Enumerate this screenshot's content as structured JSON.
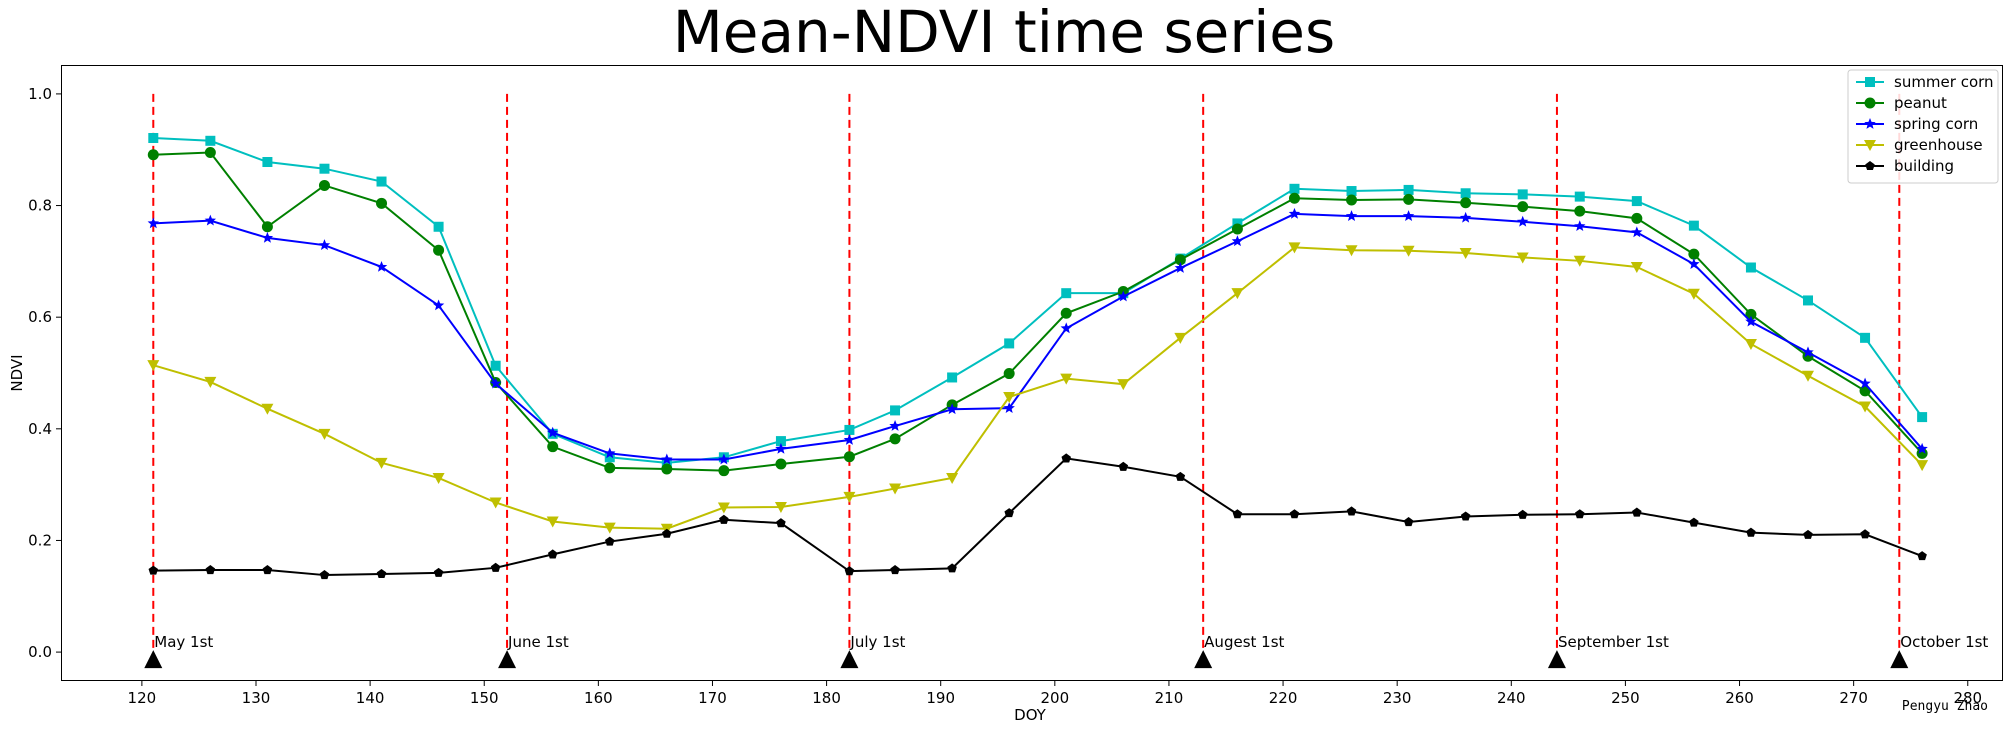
{
  "chart_data": {
    "type": "line",
    "title": "Mean-NDVI time series",
    "xlabel": "DOY",
    "ylabel": "NDVI",
    "xlim": [
      113,
      283
    ],
    "ylim": [
      -0.05,
      1.05
    ],
    "x_ticks": [
      120,
      130,
      140,
      150,
      160,
      170,
      180,
      190,
      200,
      210,
      220,
      230,
      240,
      250,
      260,
      270,
      280
    ],
    "y_ticks": [
      0.0,
      0.2,
      0.4,
      0.6,
      0.8,
      1.0
    ],
    "y_tick_labels": [
      "0.0",
      "0.2",
      "0.4",
      "0.6",
      "0.8",
      "1.0"
    ],
    "grid": false,
    "legend_position": "top-right",
    "x": [
      121,
      126,
      131,
      136,
      141,
      146,
      151,
      156,
      161,
      166,
      171,
      176,
      182,
      186,
      191,
      196,
      201,
      206,
      211,
      216,
      221,
      226,
      231,
      236,
      241,
      246,
      251,
      256,
      261,
      266,
      271,
      276
    ],
    "series": [
      {
        "name": "summer corn",
        "color": "#00bfbf",
        "marker": "square",
        "values": [
          0.921,
          0.916,
          0.878,
          0.866,
          0.843,
          0.762,
          0.513,
          0.391,
          0.349,
          0.339,
          0.349,
          0.378,
          0.398,
          0.433,
          0.492,
          0.553,
          0.643,
          0.643,
          0.705,
          0.768,
          0.83,
          0.826,
          0.828,
          0.822,
          0.82,
          0.816,
          0.808,
          0.764,
          0.689,
          0.63,
          0.563,
          0.421
        ]
      },
      {
        "name": "peanut",
        "color": "#008000",
        "marker": "circle",
        "values": [
          0.891,
          0.895,
          0.762,
          0.836,
          0.804,
          0.72,
          0.483,
          0.368,
          0.33,
          0.328,
          0.325,
          0.337,
          0.35,
          0.382,
          0.443,
          0.499,
          0.607,
          0.646,
          0.703,
          0.758,
          0.813,
          0.81,
          0.811,
          0.805,
          0.798,
          0.79,
          0.777,
          0.713,
          0.605,
          0.53,
          0.468,
          0.356
        ]
      },
      {
        "name": "spring corn",
        "color": "#0000ff",
        "marker": "star",
        "values": [
          0.768,
          0.773,
          0.742,
          0.729,
          0.69,
          0.621,
          0.481,
          0.393,
          0.356,
          0.345,
          0.345,
          0.364,
          0.38,
          0.405,
          0.435,
          0.437,
          0.58,
          0.637,
          0.688,
          0.736,
          0.785,
          0.781,
          0.781,
          0.778,
          0.771,
          0.763,
          0.752,
          0.695,
          0.592,
          0.537,
          0.481,
          0.364
        ]
      },
      {
        "name": "greenhouse",
        "color": "#bfbf00",
        "marker": "triangle-down",
        "values": [
          0.514,
          0.484,
          0.436,
          0.391,
          0.339,
          0.312,
          0.268,
          0.234,
          0.223,
          0.221,
          0.259,
          0.26,
          0.278,
          0.293,
          0.312,
          0.457,
          0.49,
          0.48,
          0.563,
          0.643,
          0.725,
          0.72,
          0.719,
          0.715,
          0.707,
          0.701,
          0.69,
          0.642,
          0.552,
          0.495,
          0.44,
          0.335
        ]
      },
      {
        "name": "building",
        "color": "#000000",
        "marker": "pentagon",
        "values": [
          0.146,
          0.147,
          0.147,
          0.138,
          0.14,
          0.142,
          0.151,
          0.175,
          0.198,
          0.212,
          0.237,
          0.231,
          0.145,
          0.147,
          0.15,
          0.249,
          0.347,
          0.332,
          0.314,
          0.247,
          0.247,
          0.252,
          0.233,
          0.243,
          0.246,
          0.247,
          0.25,
          0.232,
          0.214,
          0.21,
          0.211,
          0.172
        ]
      }
    ],
    "vertical_markers": [
      {
        "x": 121,
        "label": "May 1st"
      },
      {
        "x": 152,
        "label": "June 1st"
      },
      {
        "x": 182,
        "label": "July 1st"
      },
      {
        "x": 213,
        "label": "Augest 1st"
      },
      {
        "x": 244,
        "label": "September 1st"
      },
      {
        "x": 274,
        "label": "October 1st"
      }
    ],
    "vline_color": "#ff0000",
    "vline_ymax": 1.0,
    "credit": "Pengyu Zhao"
  }
}
